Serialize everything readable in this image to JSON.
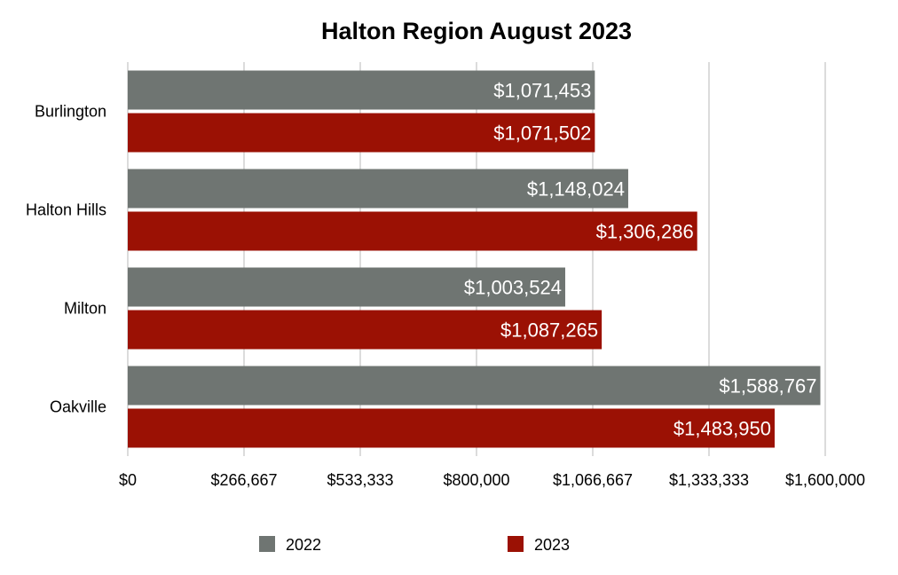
{
  "chart_data": {
    "type": "bar",
    "orientation": "horizontal",
    "title": "Halton Region August 2023",
    "categories": [
      "Burlington",
      "Halton Hills",
      "Milton",
      "Oakville"
    ],
    "series": [
      {
        "name": "2022",
        "color": "#6f7572",
        "values": [
          1071453,
          1148024,
          1003524,
          1588767
        ],
        "labels": [
          "$1,071,453",
          "$1,148,024",
          "$1,003,524",
          "$1,588,767"
        ]
      },
      {
        "name": "2023",
        "color": "#9b1104",
        "values": [
          1071502,
          1306286,
          1087265,
          1483950
        ],
        "labels": [
          "$1,071,502",
          "$1,306,286",
          "$1,087,265",
          "$1,483,950"
        ]
      }
    ],
    "xlim": [
      0,
      1600000
    ],
    "x_ticks": [
      0,
      266667,
      533333,
      800000,
      1066667,
      1333333,
      1600000
    ],
    "x_tick_labels": [
      "$0",
      "$266,667",
      "$533,333",
      "$800,000",
      "$1,066,667",
      "$1,333,333",
      "$1,600,000"
    ],
    "grid": "vertical",
    "legend_position": "bottom",
    "gridline_color": "#c8c8c8"
  }
}
